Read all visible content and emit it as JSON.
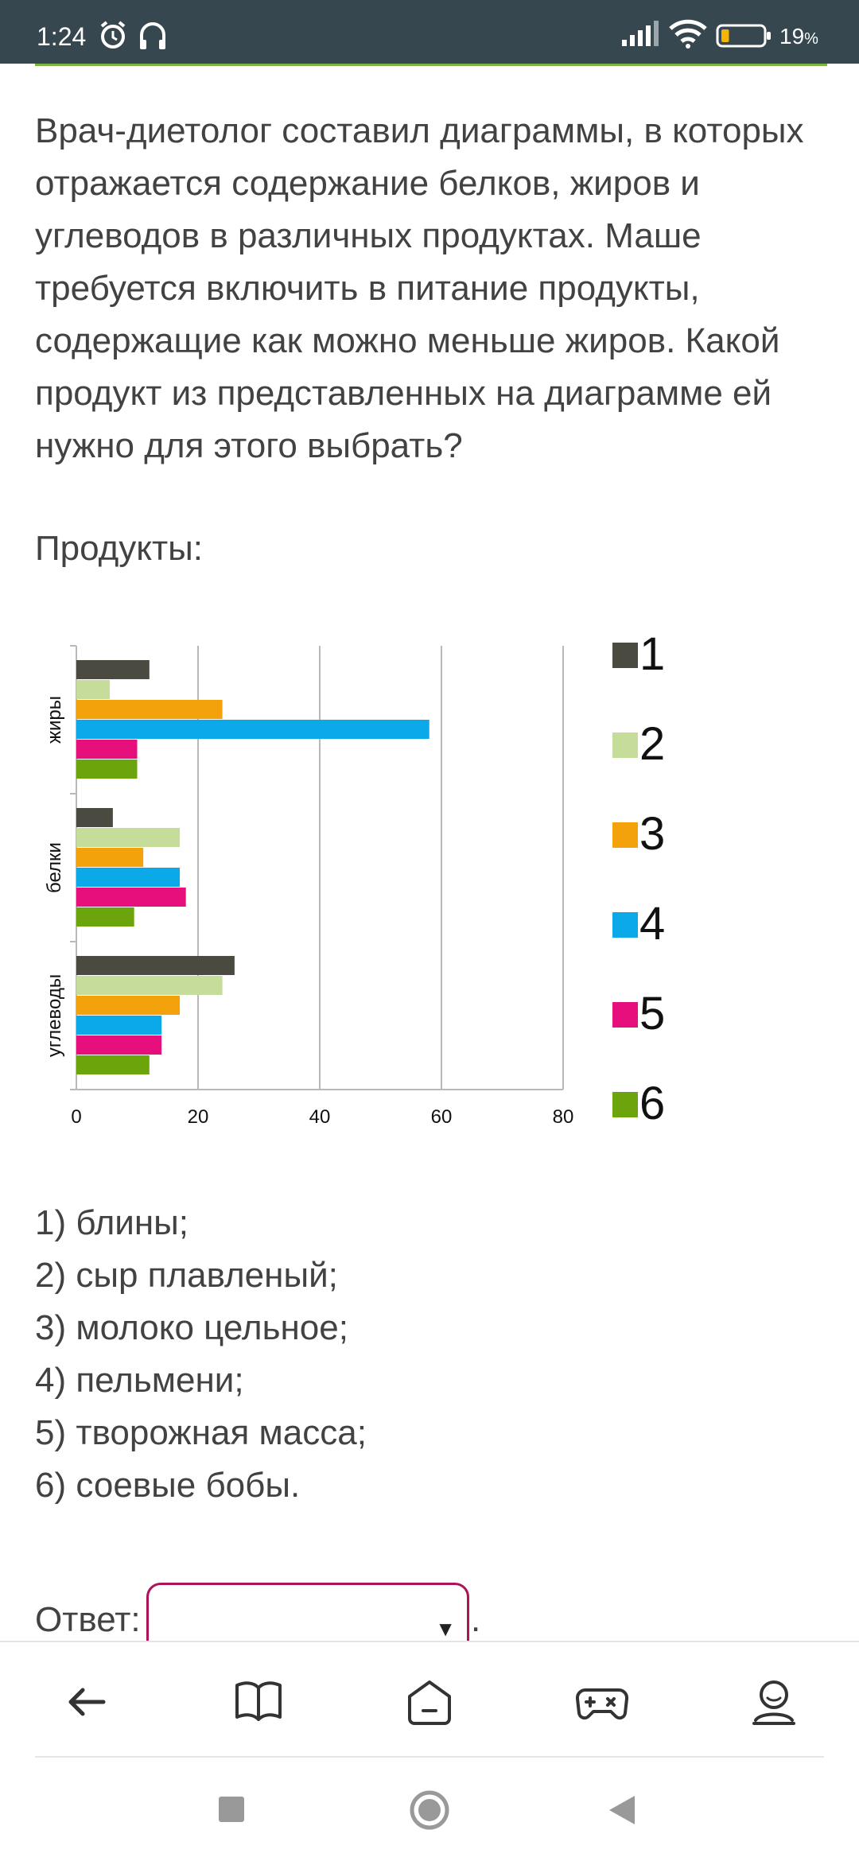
{
  "status_bar": {
    "time": "1:24",
    "battery_percent": "19",
    "battery_level": 0.19,
    "icons": [
      "alarm-icon",
      "headphones-icon",
      "signal-icon",
      "wifi-icon",
      "battery-icon"
    ]
  },
  "question": {
    "text": "Врач-диетолог составил диаграммы, в которых отражается содержание белков, жиров и углеводов в различных продуктах. Маше требуется включить в питание продукты, содержащие как можно меньше жиров. Какой продукт из представленных на диаграмме ей нужно для этого выбрать?",
    "products_label": "Продукты:"
  },
  "chart_data": {
    "type": "bar",
    "orientation": "horizontal",
    "categories": [
      "жиры",
      "белки",
      "углеводы"
    ],
    "series": [
      {
        "name": "1",
        "color": "#4a4a40",
        "values": [
          12,
          6,
          26
        ]
      },
      {
        "name": "2",
        "color": "#c5dc9b",
        "values": [
          5.5,
          17,
          24
        ]
      },
      {
        "name": "3",
        "color": "#f4a20b",
        "values": [
          24,
          11,
          17
        ]
      },
      {
        "name": "4",
        "color": "#0ba9e8",
        "values": [
          58,
          17,
          14
        ]
      },
      {
        "name": "5",
        "color": "#e60f7c",
        "values": [
          10,
          18,
          14
        ]
      },
      {
        "name": "6",
        "color": "#6ca40c",
        "values": [
          10,
          9.5,
          12
        ]
      }
    ],
    "x_ticks": [
      "0",
      "20",
      "40",
      "60",
      "80"
    ],
    "xlim": [
      0,
      80
    ],
    "grid": true,
    "legend_position": "right"
  },
  "options": [
    "1) блины;",
    "2) сыр плавленый;",
    "3) молоко цельное;",
    "4) пельмени;",
    "5) творожная масса;",
    "6) соевые бобы."
  ],
  "answer": {
    "label": "Ответ:",
    "value": "",
    "arrow": "▼",
    "trailing": "."
  },
  "bottom_nav": [
    "back-arrow-icon",
    "book-icon",
    "home-icon",
    "gamepad-icon",
    "profile-icon"
  ],
  "system_nav": [
    "recents-icon",
    "home-circle-icon",
    "back-triangle-icon"
  ],
  "colors": {
    "status_bar": "#37474f",
    "accent_green": "#7cb342",
    "select_border": "#ad1457",
    "text": "#424242"
  }
}
